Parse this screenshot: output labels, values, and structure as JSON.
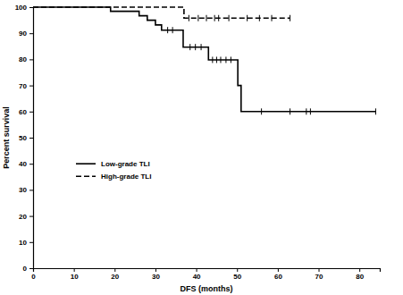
{
  "chart_data": {
    "type": "survival",
    "x_label": "DFS (months)",
    "y_label": "Percent survival",
    "xlim": [
      0,
      85
    ],
    "ylim": [
      0,
      100
    ],
    "xticks": [
      0,
      10,
      20,
      30,
      40,
      50,
      60,
      70,
      80
    ],
    "yticks": [
      0,
      10,
      20,
      30,
      40,
      50,
      60,
      70,
      80,
      90,
      100
    ],
    "grid": false,
    "legend": "left",
    "series": [
      {
        "name": "Low-grade TLI",
        "color": "#000000",
        "line_style": "solid",
        "marker": "tick",
        "x": [
          0,
          19,
          26,
          28,
          30,
          31.5,
          36.8,
          43,
          50.2,
          51,
          84
        ],
        "values": [
          100,
          98.4,
          96.7,
          95,
          93.2,
          91.2,
          84.7,
          79.8,
          70,
          60,
          60
        ],
        "censored_x": [
          33,
          34.2,
          38.5,
          39.8,
          41.2,
          44,
          45,
          46,
          47.3,
          48.5,
          56,
          63,
          67,
          68,
          84
        ],
        "censored_values": [
          91.2,
          91.2,
          84.7,
          84.7,
          84.7,
          79.8,
          79.8,
          79.8,
          79.8,
          79.8,
          60,
          60,
          60,
          60,
          60
        ]
      },
      {
        "name": "High-grade TLI",
        "color": "#000000",
        "line_style": "dashed",
        "marker": "tick",
        "x": [
          0,
          37,
          63
        ],
        "values": [
          100,
          95.8,
          95.8
        ],
        "censored_x": [
          38.2,
          40.5,
          42.5,
          44.5,
          45.5,
          48,
          52.5,
          55.5,
          58.5,
          63
        ],
        "censored_values": [
          95.8,
          95.8,
          95.8,
          95.8,
          95.8,
          95.8,
          95.8,
          95.8,
          95.8,
          95.8
        ]
      }
    ]
  }
}
